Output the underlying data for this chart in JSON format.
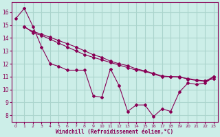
{
  "xlabel": "Windchill (Refroidissement éolien,°C)",
  "background_color": "#cceee8",
  "grid_color": "#aad4cc",
  "line_color": "#880055",
  "xlim": [
    -0.5,
    23.5
  ],
  "ylim": [
    7.5,
    16.8
  ],
  "yticks": [
    8,
    9,
    10,
    11,
    12,
    13,
    14,
    15,
    16
  ],
  "xticks": [
    0,
    1,
    2,
    3,
    4,
    5,
    6,
    7,
    8,
    9,
    10,
    11,
    12,
    13,
    14,
    15,
    16,
    17,
    18,
    19,
    20,
    21,
    22,
    23
  ],
  "line1_x": [
    0,
    1,
    2,
    3,
    4,
    5,
    6,
    7,
    8,
    9,
    10,
    11,
    12,
    13,
    14,
    15,
    16,
    17,
    18,
    19,
    20,
    21,
    22,
    23
  ],
  "line1_y": [
    15.5,
    16.3,
    14.9,
    13.3,
    12.0,
    11.8,
    11.5,
    11.5,
    11.5,
    9.5,
    9.4,
    11.6,
    10.3,
    8.3,
    8.8,
    8.8,
    7.9,
    8.5,
    8.3,
    9.8,
    10.5,
    10.4,
    10.5,
    11.0
  ],
  "line2_x": [
    1,
    2,
    3,
    4,
    5,
    6,
    7,
    8,
    9,
    10,
    11,
    12,
    13,
    14,
    15,
    16,
    17,
    18,
    19,
    20,
    21,
    22,
    23
  ],
  "line2_y": [
    14.9,
    14.4,
    14.2,
    13.9,
    13.6,
    13.3,
    13.0,
    12.7,
    12.5,
    12.3,
    12.1,
    11.9,
    11.7,
    11.5,
    11.4,
    11.2,
    11.0,
    11.0,
    11.0,
    10.8,
    10.7,
    10.65,
    11.0
  ],
  "line3_x": [
    1,
    2,
    3,
    4,
    5,
    6,
    7,
    8,
    9,
    10,
    11,
    12,
    13,
    14,
    15,
    16,
    17,
    18,
    19,
    20,
    21,
    22,
    23
  ],
  "line3_y": [
    14.85,
    14.5,
    14.3,
    14.05,
    13.8,
    13.55,
    13.3,
    13.0,
    12.7,
    12.5,
    12.2,
    12.0,
    11.85,
    11.6,
    11.45,
    11.25,
    11.05,
    11.0,
    10.95,
    10.85,
    10.75,
    10.65,
    10.85
  ]
}
